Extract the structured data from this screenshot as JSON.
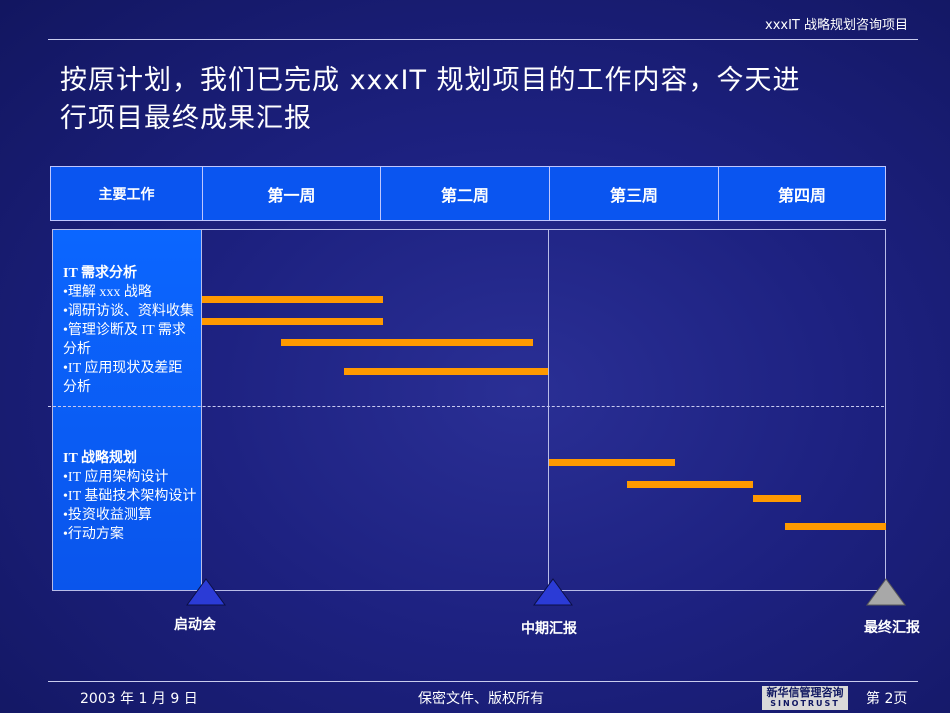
{
  "header": {
    "title": "xxxIT 战略规划咨询项目"
  },
  "title": {
    "line1": "按原计划，我们已完成 xxxIT 规划项目的工作内容，今天进",
    "line2": "行项目最终成果汇报"
  },
  "gantt": {
    "columns": [
      "主要工作",
      "第一周",
      "第二周",
      "第三周",
      "第四周"
    ],
    "groups": [
      {
        "title": "IT 需求分析",
        "items": [
          "•理解 xxx 战略",
          "•调研访谈、资料收集",
          "•管理诊断及 IT 需求",
          "分析",
          "•IT 应用现状及差距",
          "分析"
        ]
      },
      {
        "title": "IT 战略规划",
        "items": [
          "•IT 应用架构设计",
          "•IT 基础技术架构设计",
          "•投资收益测算",
          "•行动方案"
        ]
      }
    ],
    "bar_color": "#ff9900"
  },
  "milestones": [
    {
      "label": "启动会",
      "color": "#2b3bd6"
    },
    {
      "label": "中期汇报",
      "color": "#2b3bd6"
    },
    {
      "label": "最终汇报",
      "color": "#a8a8a8"
    }
  ],
  "footer": {
    "date": "2003 年 1 月 9 日",
    "confidential": "保密文件、版权所有",
    "logo_cn": "新华信管理咨询",
    "logo_en": "SINOTRUST",
    "page": "第 2页"
  }
}
